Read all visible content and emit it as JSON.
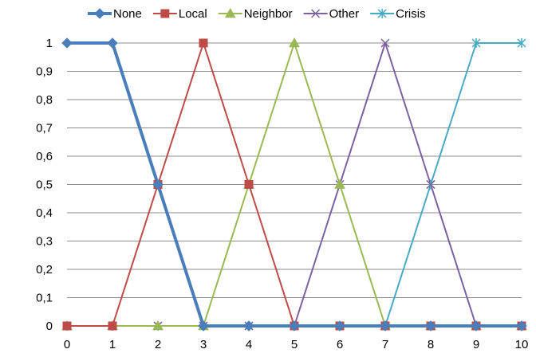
{
  "chart_data": {
    "type": "line",
    "x": [
      0,
      1,
      2,
      3,
      4,
      5,
      6,
      7,
      8,
      9,
      10
    ],
    "xticks": [
      "0",
      "1",
      "2",
      "3",
      "4",
      "5",
      "6",
      "7",
      "8",
      "9",
      "10"
    ],
    "yticks": [
      "0",
      "0,1",
      "0,2",
      "0,3",
      "0,4",
      "0,5",
      "0,6",
      "0,7",
      "0,8",
      "0,9",
      "1"
    ],
    "ylim": [
      0,
      1
    ],
    "xlim": [
      0,
      10
    ],
    "grid": "horizontal",
    "legend_position": "top",
    "series": [
      {
        "name": "None",
        "color": "#4a7ebb",
        "marker": "diamond",
        "values": [
          1,
          1,
          0.5,
          0,
          0,
          0,
          0,
          0,
          0,
          0,
          0
        ]
      },
      {
        "name": "Local",
        "color": "#be4b48",
        "marker": "square",
        "values": [
          0,
          0,
          0.5,
          1,
          0.5,
          0,
          0,
          0,
          0,
          0,
          0
        ]
      },
      {
        "name": "Neighbor",
        "color": "#98b954",
        "marker": "triangle",
        "values": [
          0,
          0,
          0,
          0,
          0.5,
          1,
          0.5,
          0,
          0,
          0,
          0
        ]
      },
      {
        "name": "Other",
        "color": "#7d60a0",
        "marker": "x",
        "values": [
          0,
          0,
          0,
          0,
          0,
          0,
          0.5,
          1,
          0.5,
          0,
          0
        ]
      },
      {
        "name": "Crisis",
        "color": "#46aac5",
        "marker": "star",
        "values": [
          0,
          0,
          0,
          0,
          0,
          0,
          0,
          0,
          0.5,
          1,
          1
        ]
      }
    ]
  }
}
